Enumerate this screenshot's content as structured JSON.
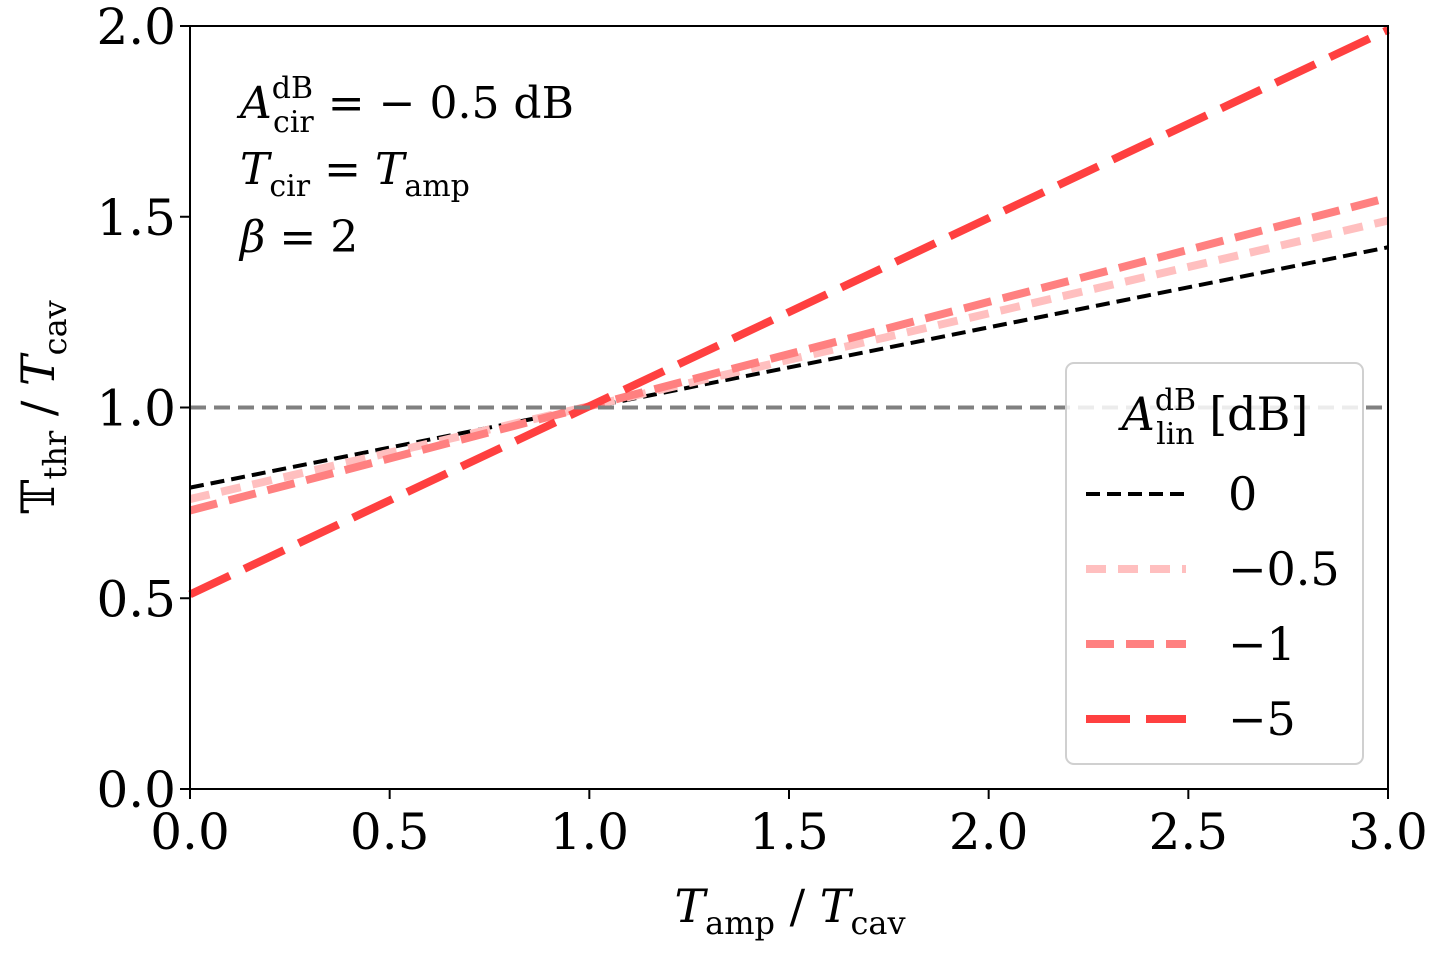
{
  "chart_data": {
    "type": "line",
    "title": "",
    "xlabel": {
      "main": "T",
      "sub": "amp",
      "sep": " / ",
      "main2": "T",
      "sub2": "cav"
    },
    "ylabel": {
      "main": "𝕋",
      "sub": "thr",
      "sep": " / ",
      "main2": "T",
      "sub2": "cav"
    },
    "xlim": [
      0.0,
      3.0
    ],
    "ylim": [
      0.0,
      2.0
    ],
    "x_ticks": [
      "0.0",
      "0.5",
      "1.0",
      "1.5",
      "2.0",
      "2.5",
      "3.0"
    ],
    "y_ticks": [
      "0.0",
      "0.5",
      "1.0",
      "1.5",
      "2.0"
    ],
    "reference_line": {
      "y": 1.0,
      "color": "#808080",
      "style": "dashed"
    },
    "annotations": [
      {
        "main": "A",
        "sub": "cir",
        "sup": "dB",
        "text": " = − 0.5 dB"
      },
      {
        "main": "T",
        "sub": "cir",
        "text": " = ",
        "main2": "T",
        "sub2": "amp"
      },
      {
        "main": "β",
        "text": " = 2"
      }
    ],
    "legend": {
      "title": {
        "main": "A",
        "sub": "lin",
        "sup": "dB",
        "text": " [dB]"
      },
      "location": "center-right"
    },
    "series": [
      {
        "name": "0",
        "color": "#000000",
        "x": [
          0.0,
          3.0
        ],
        "y": [
          0.79,
          1.42
        ]
      },
      {
        "name": "−0.5",
        "color": "#ffbfbf",
        "x": [
          0.0,
          3.0
        ],
        "y": [
          0.76,
          1.49
        ]
      },
      {
        "name": "−1",
        "color": "#ff8080",
        "x": [
          0.0,
          3.0
        ],
        "y": [
          0.73,
          1.55
        ]
      },
      {
        "name": "−5",
        "color": "#ff4040",
        "x": [
          0.0,
          3.0
        ],
        "y": [
          0.51,
          1.99
        ]
      }
    ]
  }
}
